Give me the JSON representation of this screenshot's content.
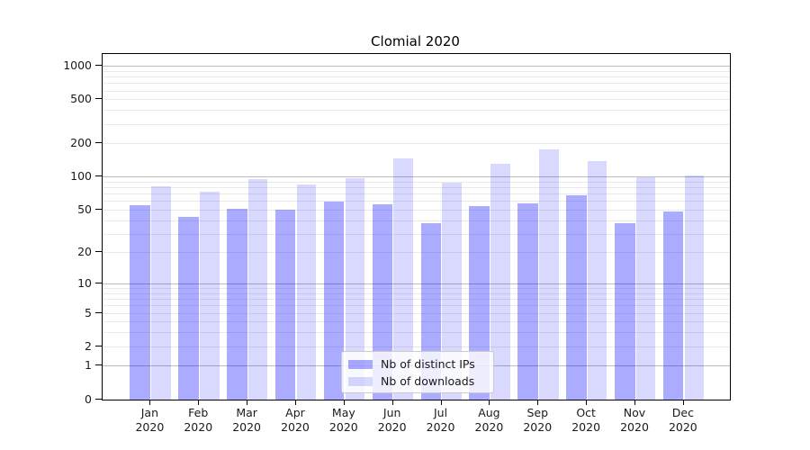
{
  "chart_data": {
    "type": "bar",
    "title": "Clomial 2020",
    "categories": [
      "Jan 2020",
      "Feb 2020",
      "Mar 2020",
      "Apr 2020",
      "May 2020",
      "Jun 2020",
      "Jul 2020",
      "Aug 2020",
      "Sep 2020",
      "Oct 2020",
      "Nov 2020",
      "Dec 2020"
    ],
    "series": [
      {
        "name": "Nb of distinct IPs",
        "color": "rgba(0,0,255,0.33)",
        "values": [
          55,
          43,
          51,
          50,
          60,
          56,
          38,
          54,
          57,
          68,
          38,
          48
        ]
      },
      {
        "name": "Nb of downloads",
        "color": "rgba(0,0,255,0.15)",
        "values": [
          82,
          74,
          96,
          85,
          98,
          147,
          89,
          132,
          179,
          139,
          100,
          103
        ]
      }
    ],
    "xlabel": "",
    "ylabel": "",
    "yscale": "log1p",
    "yticks": [
      1000,
      500,
      200,
      100,
      50,
      20,
      10,
      5,
      2,
      1,
      0
    ],
    "ylim": [
      0,
      1295
    ],
    "grid": "on",
    "legend_position": "lower-center-inside"
  },
  "colors": {
    "bar_distinct_ips": "rgba(0,0,255,0.33)",
    "bar_downloads": "rgba(0,0,255,0.15)",
    "major_gridline": "#bdbdbd",
    "minor_gridline": "#eaeaea"
  }
}
